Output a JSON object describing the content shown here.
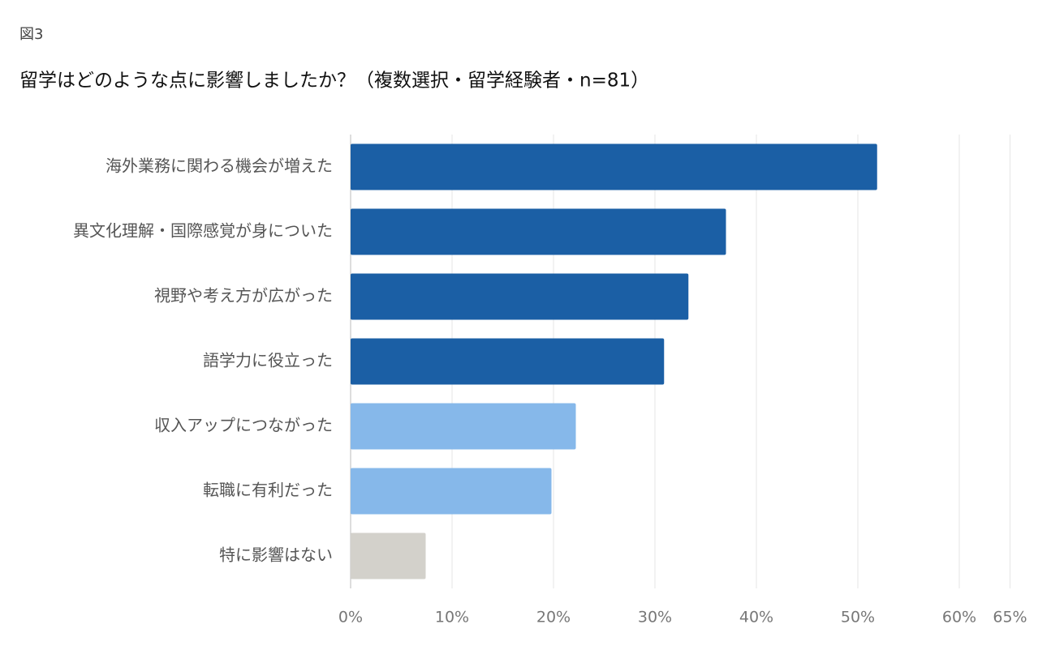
{
  "chart_data": {
    "type": "bar",
    "orientation": "horizontal",
    "figure_label": "図3",
    "title": "留学はどのような点に影響しましたか？（複数選択・留学経験者・n=81）",
    "categories": [
      "海外業務に関わる機会が増えた",
      "異文化理解・国際感覚が身についた",
      "視野や考え方が広がった",
      "語学力に役立った",
      "収入アップにつながった",
      "転職に有利だった",
      "特に影響はない"
    ],
    "values": [
      51.9,
      37.0,
      33.3,
      30.9,
      22.2,
      19.8,
      7.4
    ],
    "colors": [
      "#1b5fa5",
      "#1b5fa5",
      "#1b5fa5",
      "#1b5fa5",
      "#86b8ea",
      "#86b8ea",
      "#d3d1cb"
    ],
    "xlim": [
      0,
      65
    ],
    "xticks": [
      {
        "value": 0,
        "label": "0%"
      },
      {
        "value": 10,
        "label": "10%"
      },
      {
        "value": 20,
        "label": "20%"
      },
      {
        "value": 30,
        "label": "30%"
      },
      {
        "value": 40,
        "label": "40%"
      },
      {
        "value": 50,
        "label": "50%"
      },
      {
        "value": 60,
        "label": "60%"
      },
      {
        "value": 65,
        "label": "65%"
      }
    ],
    "grid": true
  }
}
